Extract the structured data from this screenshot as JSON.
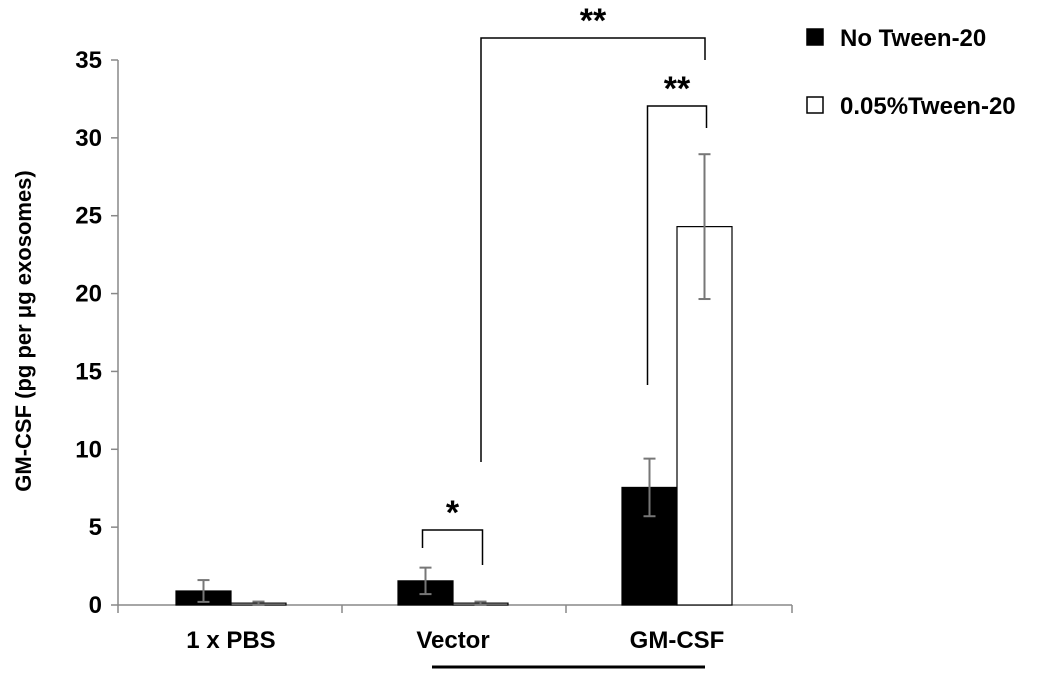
{
  "chart_data": {
    "type": "bar",
    "ylabel": "GM-CSF (pg per μg exosomes)",
    "ylim": [
      0,
      35
    ],
    "yticks": [
      0,
      5,
      10,
      15,
      20,
      25,
      30,
      35
    ],
    "categories": [
      "1 x PBS",
      "Vector",
      "GM-CSF"
    ],
    "series": [
      {
        "name": "No Tween-20",
        "color": "#000000",
        "values": [
          0.9,
          1.55,
          7.55
        ],
        "errors": [
          0.7,
          0.85,
          1.85
        ]
      },
      {
        "name": "0.05%Tween-20",
        "color": "#ffffff",
        "values": [
          0.12,
          0.12,
          24.3
        ],
        "errors": [
          0.1,
          0.1,
          4.65
        ]
      }
    ],
    "legend_position": "top-right",
    "grid": false,
    "significance": [
      {
        "label": "*"
      },
      {
        "label": "**"
      },
      {
        "label": "**"
      }
    ]
  }
}
